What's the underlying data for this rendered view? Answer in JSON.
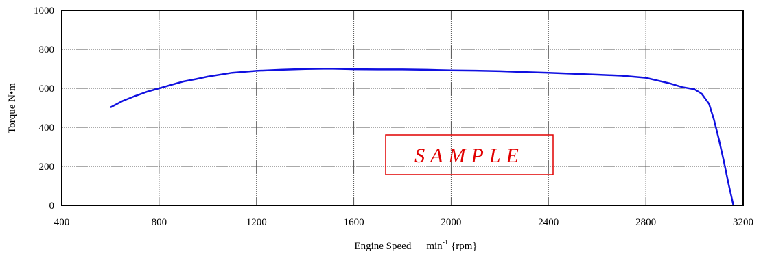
{
  "chart_data": {
    "type": "line",
    "xlabel": {
      "main": "Engine Speed",
      "unit_prefix": "min",
      "unit_exp": "-1",
      "unit_suffix": "{rpm}"
    },
    "ylabel": "Torque  N•m",
    "xlim": [
      400,
      3200
    ],
    "ylim": [
      0,
      1000
    ],
    "x_ticks": [
      400,
      800,
      1200,
      1600,
      2000,
      2400,
      2800,
      3200
    ],
    "y_ticks": [
      0,
      200,
      400,
      600,
      800,
      1000
    ],
    "grid": true,
    "line_color": "#1010e0",
    "watermark": "SAMPLE",
    "watermark_color": "#e00000",
    "series": [
      {
        "x": [
          600,
          650,
          700,
          750,
          800,
          850,
          900,
          950,
          1000,
          1100,
          1200,
          1300,
          1400,
          1500,
          1600,
          1700,
          1800,
          1900,
          2000,
          2100,
          2200,
          2300,
          2400,
          2500,
          2600,
          2700,
          2800,
          2900,
          2950,
          3000,
          3030,
          3060,
          3080,
          3100,
          3120,
          3140,
          3160
        ],
        "y": [
          502,
          535,
          560,
          582,
          600,
          618,
          635,
          647,
          660,
          680,
          690,
          695,
          699,
          701,
          698,
          697,
          697,
          695,
          692,
          691,
          688,
          684,
          680,
          675,
          670,
          665,
          654,
          625,
          606,
          595,
          572,
          520,
          440,
          340,
          230,
          110,
          0
        ]
      }
    ]
  }
}
